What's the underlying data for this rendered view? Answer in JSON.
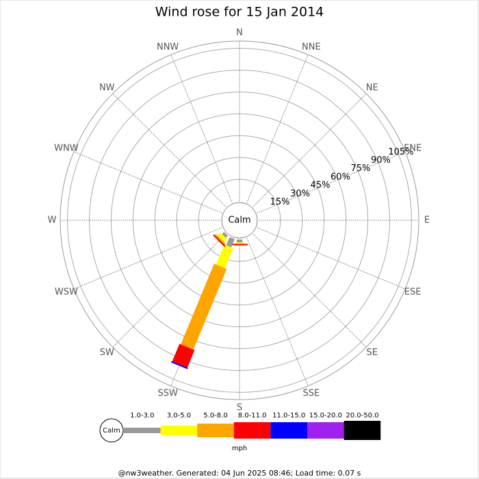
{
  "chart_data": {
    "type": "windrose",
    "title": "Wind rose for 15 Jan 2014",
    "categories": [
      "N",
      "NNE",
      "NE",
      "ENE",
      "E",
      "ESE",
      "SE",
      "SSE",
      "S",
      "SSW",
      "SW",
      "WSW",
      "W",
      "WNW",
      "NW",
      "NNW"
    ],
    "center_label": "Calm",
    "ylim": [
      0,
      110
    ],
    "yticks": [
      {
        "value": 15,
        "label": "15%"
      },
      {
        "value": 30,
        "label": "30%"
      },
      {
        "value": 45,
        "label": "45%"
      },
      {
        "value": 60,
        "label": "60%"
      },
      {
        "value": 75,
        "label": "75%"
      },
      {
        "value": 90,
        "label": "90%"
      },
      {
        "value": 105,
        "label": "105%"
      }
    ],
    "series": [
      {
        "name": "1.0-3.0",
        "color": "#999999",
        "values": [
          0,
          0,
          0,
          0,
          0,
          0,
          0,
          0,
          2,
          6,
          2,
          0,
          0,
          0,
          0,
          0
        ]
      },
      {
        "name": "3.0-5.0",
        "color": "#ffff00",
        "values": [
          0,
          0,
          0,
          0,
          0,
          0,
          0,
          0,
          1,
          15,
          3,
          0,
          0,
          0,
          0,
          0
        ]
      },
      {
        "name": "5.0-8.0",
        "color": "#ffa500",
        "values": [
          0,
          0,
          0,
          0,
          0,
          0,
          0,
          0,
          0,
          60,
          1,
          0,
          0,
          0,
          0,
          0
        ]
      },
      {
        "name": "8.0-11.0",
        "color": "#ff0000",
        "values": [
          0,
          0,
          0,
          0,
          0,
          0,
          0,
          0,
          1,
          13,
          1,
          0,
          0,
          0,
          0,
          0
        ]
      },
      {
        "name": "11.0-15.0",
        "color": "#0000ff",
        "values": [
          0,
          0,
          0,
          0,
          0,
          0,
          0,
          0,
          0,
          1,
          0,
          0,
          0,
          0,
          0,
          0
        ]
      },
      {
        "name": "15.0-20.0",
        "color": "#a020f0",
        "values": [
          0,
          0,
          0,
          0,
          0,
          0,
          0,
          0,
          0,
          0,
          0,
          0,
          0,
          0,
          0,
          0
        ]
      },
      {
        "name": "20.0-50.0",
        "color": "#000000",
        "values": [
          0,
          0,
          0,
          0,
          0,
          0,
          0,
          0,
          0,
          0,
          0,
          0,
          0,
          0,
          0,
          0
        ]
      }
    ],
    "unit_label": "mph",
    "footer": "@nw3weather. Generated: 04 Jun 2025 08:46; Load time: 0.07 s"
  }
}
